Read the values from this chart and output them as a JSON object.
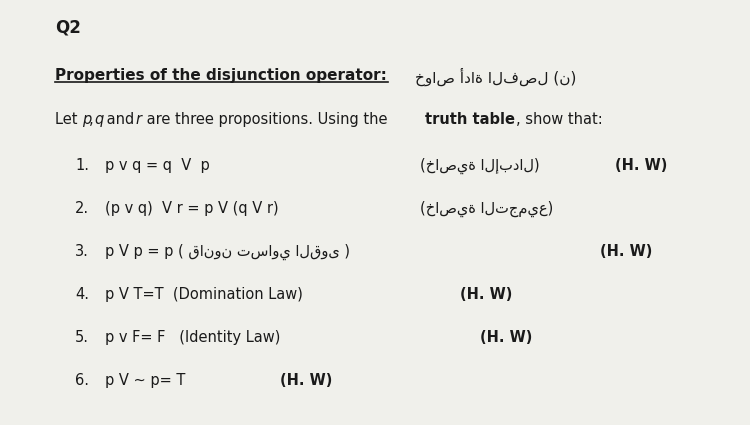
{
  "bg_color": "#f0f0eb",
  "title": "Q2",
  "heading_left": "Properties of the disjunction operator:",
  "heading_right": "خواص أداة الفصل (ن)",
  "items": [
    {
      "num": "1.",
      "formula": "p v q = q  V  p",
      "arabic": "(خاصية الإبدال)",
      "hw": "(H. W)"
    },
    {
      "num": "2.",
      "formula": "(p v q)  V r = p V (q V r)",
      "arabic": "(خاصية التجميع)",
      "hw": ""
    },
    {
      "num": "3.",
      "formula": "p V p = p ( قانون تساوي القوى )",
      "arabic": "",
      "hw": "(H. W)"
    },
    {
      "num": "4.",
      "formula": "p V T=T  (Domination Law)",
      "arabic": "",
      "hw": "(H. W)"
    },
    {
      "num": "5.",
      "formula": "p v F= F   (Identity Law)",
      "arabic": "",
      "hw": "(H. W)"
    },
    {
      "num": "6.",
      "formula": "p V ∼ p= T",
      "arabic": "",
      "hw": "(H. W)"
    }
  ]
}
